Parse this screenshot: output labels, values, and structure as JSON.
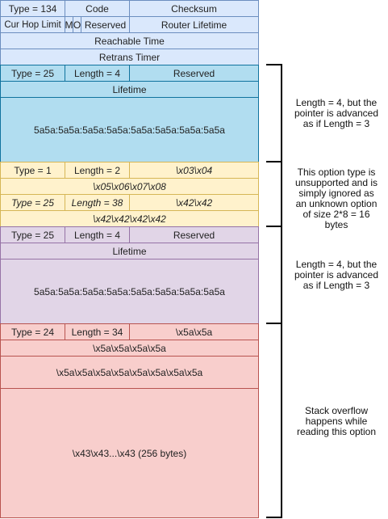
{
  "header": {
    "type": "Type = 134",
    "code": "Code",
    "checksum": "Checksum",
    "cur_hop_limit": "Cur Hop Limit",
    "m": "M",
    "o": "O",
    "reserved": "Reserved",
    "router_lifetime": "Router Lifetime",
    "reachable_time": "Reachable Time",
    "retrans_timer": "Retrans Timer"
  },
  "option1": {
    "type": "Type = 25",
    "length": "Length = 4",
    "reserved": "Reserved",
    "lifetime": "Lifetime",
    "payload": "5a5a:5a5a:5a5a:5a5a:5a5a:5a5a:5a5a:5a5a",
    "note": "Length = 4, but the pointer is advanced as if Length = 3"
  },
  "option2": {
    "type_a": "Type = 1",
    "length_a": "Length = 2",
    "bytes_a": "\\x03\\x04",
    "bytes_b": "\\x05\\x06\\x07\\x08",
    "type_b": "Type = 25",
    "length_b": "Length = 38",
    "bytes_c": "\\x42\\x42",
    "bytes_d": "\\x42\\x42\\x42\\x42",
    "note": "This option type is unsupported and is simply ignored as an unknown option of size 2*8 = 16 bytes"
  },
  "option3": {
    "type": "Type = 25",
    "length": "Length = 4",
    "reserved": "Reserved",
    "lifetime": "Lifetime",
    "payload": "5a5a:5a5a:5a5a:5a5a:5a5a:5a5a:5a5a:5a5a",
    "note": "Length = 4, but the pointer is advanced as if Length = 3"
  },
  "option4": {
    "type": "Type = 24",
    "length": "Length = 34",
    "bytes_a": "\\x5a\\x5a",
    "bytes_b": "\\x5a\\x5a\\x5a\\x5a",
    "bytes_c": "\\x5a\\x5a\\x5a\\x5a\\x5a\\x5a\\x5a\\x5a",
    "bytes_d": "\\x43\\x43...\\x43 (256 bytes)",
    "note": "Stack overflow happens while reading this option"
  }
}
